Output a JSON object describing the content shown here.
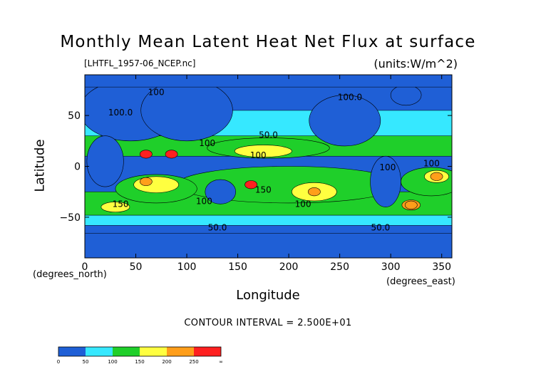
{
  "title": "Monthly Mean Latent Heat Net Flux at surface",
  "file_label": "[LHTFL_1957-06_NCEP.nc]",
  "units_label": "(units:W/m^2)",
  "contour_interval_text": "CONTOUR INTERVAL = 2.500E+01",
  "chart_data": {
    "type": "heatmap",
    "title": "Monthly Mean Latent Heat Net Flux at surface",
    "xlabel": "Longitude",
    "ylabel": "Latitude",
    "x_unit_label": "(degrees_east)",
    "y_unit_label": "(degrees_north)",
    "xlim": [
      0,
      360
    ],
    "ylim": [
      -90,
      90
    ],
    "x_ticks": [
      0,
      50,
      100,
      150,
      200,
      250,
      300,
      350
    ],
    "y_ticks": [
      -50,
      0,
      50
    ],
    "y_tick_labels": [
      "−50",
      "0",
      "50"
    ],
    "contour_interval": 25,
    "colorbar": {
      "bins": [
        {
          "from": 0,
          "to": 25,
          "color": "#1f5fd6"
        },
        {
          "from": 25,
          "to": 50,
          "color": "#1f5fd6"
        },
        {
          "from": 50,
          "to": 75,
          "color": "#36e8ff"
        },
        {
          "from": 75,
          "to": 100,
          "color": "#36e8ff"
        },
        {
          "from": 100,
          "to": 125,
          "color": "#1fcf2a"
        },
        {
          "from": 125,
          "to": 150,
          "color": "#1fcf2a"
        },
        {
          "from": 150,
          "to": 175,
          "color": "#ffff40"
        },
        {
          "from": 175,
          "to": 200,
          "color": "#ffff40"
        },
        {
          "from": 200,
          "to": 225,
          "color": "#ff9e1a"
        },
        {
          "from": 225,
          "to": 250,
          "color": "#ff9e1a"
        },
        {
          "from": 250,
          "to": 275,
          "color": "#ff2020"
        },
        {
          "from": 275,
          "to": "∞",
          "color": "#ff2020"
        }
      ],
      "tick_labels": [
        "0",
        "50",
        "100",
        "150",
        "200",
        "250",
        "∞"
      ]
    },
    "contour_labels": [
      {
        "text": "100",
        "lon": 70,
        "lat": 70
      },
      {
        "text": "100.0",
        "lon": 35,
        "lat": 50
      },
      {
        "text": "100.0",
        "lon": 260,
        "lat": 65
      },
      {
        "text": "50.0",
        "lon": 180,
        "lat": 28
      },
      {
        "text": "100",
        "lon": 120,
        "lat": 20
      },
      {
        "text": "100",
        "lon": 170,
        "lat": 8
      },
      {
        "text": "100",
        "lon": 297,
        "lat": -4
      },
      {
        "text": "100",
        "lon": 340,
        "lat": 0
      },
      {
        "text": "150",
        "lon": 175,
        "lat": -26
      },
      {
        "text": "150",
        "lon": 35,
        "lat": -40
      },
      {
        "text": "100",
        "lon": 117,
        "lat": -37
      },
      {
        "text": "100",
        "lon": 214,
        "lat": -40
      },
      {
        "text": "50.0",
        "lon": 130,
        "lat": -63
      },
      {
        "text": "50.0",
        "lon": 290,
        "lat": -63
      }
    ],
    "high_flux_regions": [
      {
        "lon": 60,
        "lat": 12,
        "value": 275
      },
      {
        "lon": 85,
        "lat": 12,
        "value": 250
      },
      {
        "lon": 163,
        "lat": -18,
        "value": 275
      },
      {
        "lon": 60,
        "lat": -15,
        "value": 225
      },
      {
        "lon": 225,
        "lat": -25,
        "value": 225
      },
      {
        "lon": 345,
        "lat": -10,
        "value": 225
      },
      {
        "lon": 320,
        "lat": -38,
        "value": 225
      }
    ]
  }
}
